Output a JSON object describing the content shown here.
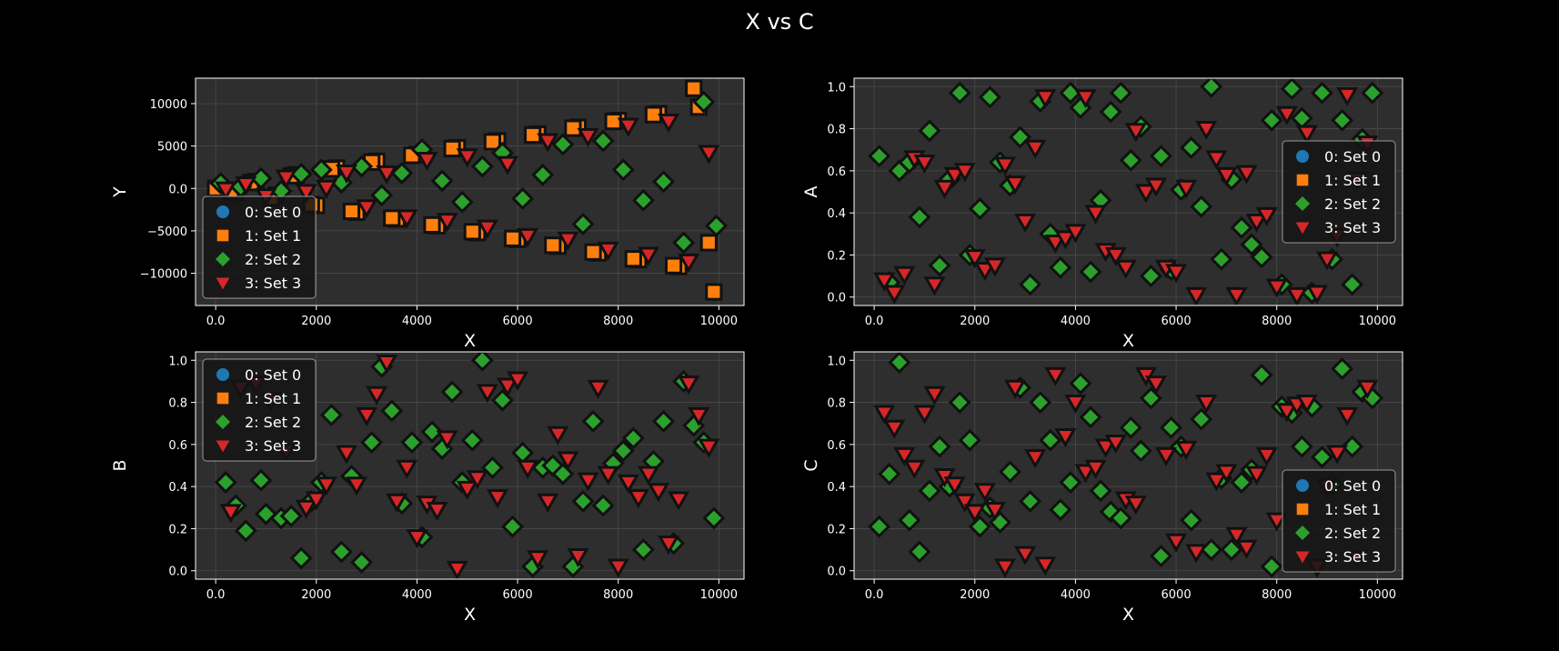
{
  "figure": {
    "title": "X vs C",
    "background": "#000000",
    "axes_face": "#2e2e2e",
    "grid_color": "#4a4a4a",
    "edge_color": "#111111"
  },
  "series_styles": [
    {
      "name": "0: Set 0",
      "marker": "circle",
      "color": "#1f77b4"
    },
    {
      "name": "1: Set 1",
      "marker": "square",
      "color": "#ff7f0e"
    },
    {
      "name": "2: Set 2",
      "marker": "diamond",
      "color": "#2ca02c"
    },
    {
      "name": "3: Set 3",
      "marker": "triangle-down",
      "color": "#d62728"
    }
  ],
  "chart_data": [
    {
      "type": "scatter",
      "title": "",
      "xlabel": "X",
      "ylabel": "Y",
      "xlim": [
        -400,
        10500
      ],
      "ylim": [
        -13800,
        13000
      ],
      "xticks": [
        0,
        2000,
        4000,
        6000,
        8000,
        10000
      ],
      "yticks": [
        -10000,
        -5000,
        0,
        5000,
        10000
      ],
      "legend": "lower-left",
      "grid": true,
      "series": [
        {
          "name": "1: Set 1",
          "x": [
            0,
            400,
            800,
            1200,
            1600,
            2000,
            2400,
            2800,
            3200,
            3600,
            4000,
            4400,
            4800,
            5200,
            5600,
            6000,
            6400,
            6800,
            7200,
            7600,
            8000,
            8400,
            8800,
            9200,
            9600,
            9900
          ],
          "y": [
            0,
            -400,
            800,
            -800,
            1600,
            -2000,
            2400,
            -2800,
            3200,
            -3600,
            4000,
            -4400,
            4800,
            -5200,
            5600,
            -6000,
            6400,
            -6800,
            7200,
            -7600,
            8000,
            -8400,
            8800,
            -9200,
            9600,
            -12200
          ]
        },
        {
          "name": "1: Set 1",
          "x": [
            300,
            700,
            1100,
            1500,
            1900,
            2300,
            2700,
            3100,
            3500,
            3900,
            4300,
            4700,
            5100,
            5500,
            5900,
            6300,
            6700,
            7100,
            7500,
            7900,
            8300,
            8700,
            9100,
            9500,
            9800
          ],
          "y": [
            -300,
            700,
            -1100,
            1500,
            -1900,
            2300,
            -2700,
            3100,
            -3500,
            3900,
            -4300,
            4700,
            -5100,
            5500,
            -5900,
            6300,
            -6700,
            7100,
            -7500,
            7900,
            -8300,
            8700,
            -9100,
            11800,
            -6400
          ]
        },
        {
          "name": "2: Set 2",
          "x": [
            100,
            500,
            900,
            1300,
            1700,
            2100,
            2500,
            2900,
            3300,
            3700,
            4100,
            4500,
            4900,
            5300,
            5700,
            6100,
            6500,
            6900,
            7300,
            7700,
            8100,
            8500,
            8900,
            9300,
            9700,
            9950
          ],
          "y": [
            600,
            200,
            1200,
            -300,
            1700,
            2200,
            700,
            2600,
            -800,
            1800,
            4600,
            900,
            -1600,
            2600,
            4200,
            -1200,
            1600,
            5200,
            -4200,
            5600,
            2200,
            -1400,
            800,
            -6400,
            10200,
            -4400
          ]
        },
        {
          "name": "3: Set 3",
          "x": [
            200,
            600,
            1000,
            1400,
            1800,
            2200,
            2600,
            3000,
            3400,
            3800,
            4200,
            4600,
            5000,
            5400,
            5800,
            6200,
            6600,
            7000,
            7400,
            7800,
            8200,
            8600,
            9000,
            9400,
            9800
          ],
          "y": [
            -100,
            500,
            -900,
            1300,
            -400,
            100,
            1900,
            -2200,
            1800,
            -3400,
            3400,
            -3800,
            3800,
            -4600,
            2900,
            -5600,
            5600,
            -6000,
            6200,
            -7200,
            7400,
            -7800,
            7900,
            -8600,
            4200
          ]
        }
      ]
    },
    {
      "type": "scatter",
      "title": "",
      "xlabel": "X",
      "ylabel": "A",
      "xlim": [
        -400,
        10500
      ],
      "ylim": [
        -0.04,
        1.04
      ],
      "xticks": [
        0,
        2000,
        4000,
        6000,
        8000,
        10000
      ],
      "yticks": [
        0.0,
        0.2,
        0.4,
        0.6,
        0.8,
        1.0
      ],
      "legend": "center-right",
      "grid": true,
      "series": [
        {
          "name": "2: Set 2",
          "x": [
            100,
            300,
            500,
            700,
            900,
            1100,
            1300,
            1500,
            1700,
            1900,
            2100,
            2300,
            2500,
            2700,
            2900,
            3100,
            3300,
            3500,
            3700,
            3900,
            4100,
            4300,
            4500,
            4700,
            4900,
            5100,
            5300,
            5500,
            5700,
            5900,
            6100,
            6300,
            6500,
            6700,
            6900,
            7100,
            7300,
            7500,
            7700,
            7900,
            8100,
            8300,
            8500,
            8700,
            8900,
            9100,
            9300,
            9500,
            9700,
            9900
          ],
          "y": [
            0.67,
            0.07,
            0.6,
            0.64,
            0.38,
            0.79,
            0.15,
            0.56,
            0.97,
            0.2,
            0.42,
            0.95,
            0.64,
            0.53,
            0.76,
            0.06,
            0.93,
            0.3,
            0.14,
            0.97,
            0.9,
            0.12,
            0.46,
            0.88,
            0.97,
            0.65,
            0.81,
            0.1,
            0.67,
            0.13,
            0.51,
            0.71,
            0.43,
            1.0,
            0.18,
            0.56,
            0.33,
            0.25,
            0.19,
            0.84,
            0.06,
            0.99,
            0.85,
            0.02,
            0.97,
            0.18,
            0.84,
            0.06,
            0.75,
            0.97
          ]
        },
        {
          "name": "3: Set 3",
          "x": [
            200,
            400,
            600,
            800,
            1000,
            1200,
            1400,
            1600,
            1800,
            2000,
            2200,
            2400,
            2600,
            2800,
            3000,
            3200,
            3400,
            3600,
            3800,
            4000,
            4200,
            4400,
            4600,
            4800,
            5000,
            5200,
            5400,
            5600,
            5800,
            6000,
            6200,
            6400,
            6600,
            6800,
            7000,
            7200,
            7400,
            7600,
            7800,
            8000,
            8200,
            8400,
            8600,
            8800,
            9000,
            9200,
            9400,
            9600,
            9800
          ],
          "y": [
            0.08,
            0.02,
            0.11,
            0.66,
            0.64,
            0.06,
            0.52,
            0.58,
            0.6,
            0.19,
            0.13,
            0.15,
            0.63,
            0.54,
            0.36,
            0.71,
            0.95,
            0.26,
            0.28,
            0.31,
            0.95,
            0.4,
            0.22,
            0.2,
            0.14,
            0.79,
            0.5,
            0.53,
            0.14,
            0.12,
            0.52,
            0.01,
            0.8,
            0.66,
            0.58,
            0.01,
            0.59,
            0.36,
            0.39,
            0.05,
            0.87,
            0.01,
            0.78,
            0.02,
            0.18,
            0.29,
            0.96,
            0.56,
            0.73
          ]
        }
      ]
    },
    {
      "type": "scatter",
      "title": "",
      "xlabel": "X",
      "ylabel": "B",
      "xlim": [
        -400,
        10500
      ],
      "ylim": [
        -0.04,
        1.04
      ],
      "xticks": [
        0,
        2000,
        4000,
        6000,
        8000,
        10000
      ],
      "yticks": [
        0.0,
        0.2,
        0.4,
        0.6,
        0.8,
        1.0
      ],
      "legend": "upper-left",
      "grid": true,
      "series": [
        {
          "name": "2: Set 2",
          "x": [
            200,
            400,
            600,
            900,
            1000,
            1300,
            1500,
            1700,
            1900,
            2100,
            2300,
            2500,
            2700,
            2900,
            3100,
            3300,
            3500,
            3700,
            3900,
            4100,
            4300,
            4500,
            4700,
            4900,
            5100,
            5300,
            5500,
            5700,
            5900,
            6100,
            6300,
            6500,
            6700,
            6900,
            7100,
            7300,
            7500,
            7700,
            7900,
            8100,
            8300,
            8500,
            8700,
            8900,
            9100,
            9300,
            9500,
            9700,
            9900
          ],
          "y": [
            0.42,
            0.31,
            0.19,
            0.43,
            0.27,
            0.25,
            0.26,
            0.06,
            0.33,
            0.42,
            0.74,
            0.09,
            0.45,
            0.04,
            0.61,
            0.97,
            0.76,
            0.32,
            0.61,
            0.16,
            0.66,
            0.58,
            0.85,
            0.42,
            0.62,
            1.0,
            0.49,
            0.81,
            0.21,
            0.56,
            0.02,
            0.49,
            0.5,
            0.46,
            0.02,
            0.33,
            0.71,
            0.31,
            0.51,
            0.57,
            0.63,
            0.1,
            0.52,
            0.71,
            0.13,
            0.9,
            0.69,
            0.61,
            0.25
          ]
        },
        {
          "name": "3: Set 3",
          "x": [
            300,
            500,
            800,
            1100,
            1400,
            1800,
            2000,
            2200,
            2600,
            2800,
            3000,
            3200,
            3400,
            3600,
            3800,
            4000,
            4200,
            4400,
            4600,
            4800,
            5000,
            5200,
            5400,
            5600,
            5800,
            6000,
            6200,
            6400,
            6600,
            6800,
            7000,
            7200,
            7400,
            7600,
            7800,
            8000,
            8200,
            8400,
            8600,
            8800,
            9000,
            9200,
            9400,
            9600,
            9800
          ],
          "y": [
            0.28,
            0.87,
            0.89,
            0.81,
            0.57,
            0.3,
            0.34,
            0.41,
            0.56,
            0.41,
            0.74,
            0.84,
            0.99,
            0.33,
            0.49,
            0.16,
            0.32,
            0.29,
            0.63,
            0.01,
            0.39,
            0.44,
            0.85,
            0.35,
            0.88,
            0.91,
            0.49,
            0.06,
            0.33,
            0.65,
            0.53,
            0.07,
            0.43,
            0.87,
            0.46,
            0.02,
            0.42,
            0.35,
            0.46,
            0.38,
            0.13,
            0.34,
            0.89,
            0.74,
            0.59
          ]
        }
      ]
    },
    {
      "type": "scatter",
      "title": "",
      "xlabel": "X",
      "ylabel": "C",
      "xlim": [
        -400,
        10500
      ],
      "ylim": [
        -0.04,
        1.04
      ],
      "xticks": [
        0,
        2000,
        4000,
        6000,
        8000,
        10000
      ],
      "yticks": [
        0.0,
        0.2,
        0.4,
        0.6,
        0.8,
        1.0
      ],
      "legend": "lower-right",
      "grid": true,
      "series": [
        {
          "name": "2: Set 2",
          "x": [
            100,
            300,
            500,
            700,
            900,
            1100,
            1300,
            1500,
            1700,
            1900,
            2100,
            2300,
            2500,
            2700,
            2900,
            3100,
            3300,
            3500,
            3700,
            3900,
            4100,
            4300,
            4500,
            4700,
            4900,
            5100,
            5300,
            5500,
            5700,
            5900,
            6100,
            6300,
            6500,
            6700,
            6900,
            7100,
            7300,
            7500,
            7700,
            7900,
            8100,
            8300,
            8500,
            8700,
            8900,
            9100,
            9300,
            9500,
            9700,
            9900
          ],
          "y": [
            0.21,
            0.46,
            0.99,
            0.24,
            0.09,
            0.38,
            0.59,
            0.4,
            0.8,
            0.62,
            0.21,
            0.3,
            0.23,
            0.47,
            0.87,
            0.33,
            0.8,
            0.62,
            0.29,
            0.42,
            0.89,
            0.73,
            0.38,
            0.28,
            0.25,
            0.68,
            0.57,
            0.82,
            0.07,
            0.68,
            0.59,
            0.24,
            0.72,
            0.1,
            0.44,
            0.1,
            0.42,
            0.48,
            0.93,
            0.02,
            0.78,
            0.75,
            0.59,
            0.78,
            0.54,
            0.41,
            0.96,
            0.59,
            0.85,
            0.82
          ]
        },
        {
          "name": "3: Set 3",
          "x": [
            200,
            400,
            600,
            800,
            1000,
            1200,
            1400,
            1600,
            1800,
            2000,
            2200,
            2400,
            2600,
            2800,
            3000,
            3200,
            3400,
            3600,
            3800,
            4000,
            4200,
            4400,
            4600,
            4800,
            5000,
            5200,
            5400,
            5600,
            5800,
            6000,
            6200,
            6400,
            6600,
            6800,
            7000,
            7200,
            7400,
            7600,
            7800,
            8000,
            8200,
            8400,
            8600,
            8800,
            9000,
            9200,
            9400,
            9600,
            9800
          ],
          "y": [
            0.75,
            0.68,
            0.55,
            0.49,
            0.75,
            0.84,
            0.45,
            0.41,
            0.33,
            0.28,
            0.38,
            0.29,
            0.02,
            0.87,
            0.08,
            0.54,
            0.03,
            0.93,
            0.64,
            0.8,
            0.47,
            0.49,
            0.59,
            0.61,
            0.34,
            0.32,
            0.93,
            0.89,
            0.55,
            0.14,
            0.58,
            0.09,
            0.8,
            0.43,
            0.47,
            0.17,
            0.11,
            0.46,
            0.55,
            0.24,
            0.76,
            0.79,
            0.8,
            0.02,
            0.4,
            0.56,
            0.74,
            0.06,
            0.87
          ]
        }
      ]
    }
  ]
}
